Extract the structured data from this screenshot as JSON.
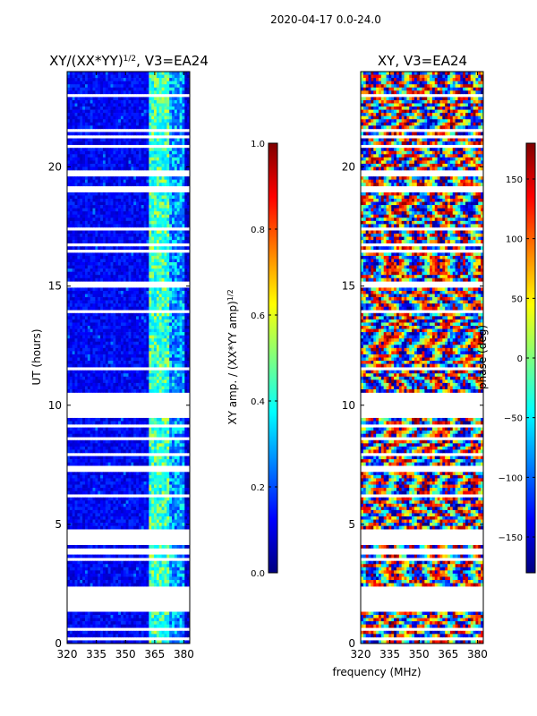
{
  "suptitle": "2020-04-17 0.0-24.0",
  "shared_xlabel": "frequency (MHz)",
  "chart_data": [
    {
      "type": "heatmap",
      "id": "amp",
      "title_main": "XY/(XX*YY)",
      "title_sup": "1/2",
      "title_tail": ", V3=EA24",
      "ylabel": "UT (hours)",
      "xlim": [
        320,
        383
      ],
      "ylim": [
        0,
        24
      ],
      "xticks": [
        320,
        335,
        350,
        365,
        380
      ],
      "yticks": [
        0,
        5,
        10,
        15,
        20
      ],
      "colorbar": {
        "label_main": "XY amp. / (XX*YY amp)",
        "label_sup": "1/2",
        "range": [
          0.0,
          1.0
        ],
        "ticks": [
          "0.0",
          "0.2",
          "0.4",
          "0.6",
          "0.8",
          "1.0"
        ],
        "tick_values": [
          0.0,
          0.2,
          0.4,
          0.6,
          0.8,
          1.0
        ],
        "colormap": "jet"
      }
    },
    {
      "type": "heatmap",
      "id": "phase",
      "title_main": "XY, V3=EA24",
      "ylabel": "",
      "xlim": [
        320,
        383
      ],
      "ylim": [
        0,
        24
      ],
      "xticks": [
        320,
        335,
        350,
        365,
        380
      ],
      "yticks": [
        0,
        5,
        10,
        15,
        20
      ],
      "colorbar": {
        "label_main": "phase (deg)",
        "range": [
          -180,
          180
        ],
        "ticks": [
          "−150",
          "−100",
          "−50",
          "0",
          "50",
          "100",
          "150"
        ],
        "tick_values": [
          -150,
          -100,
          -50,
          0,
          50,
          100,
          150
        ],
        "colormap": "jet"
      }
    }
  ]
}
